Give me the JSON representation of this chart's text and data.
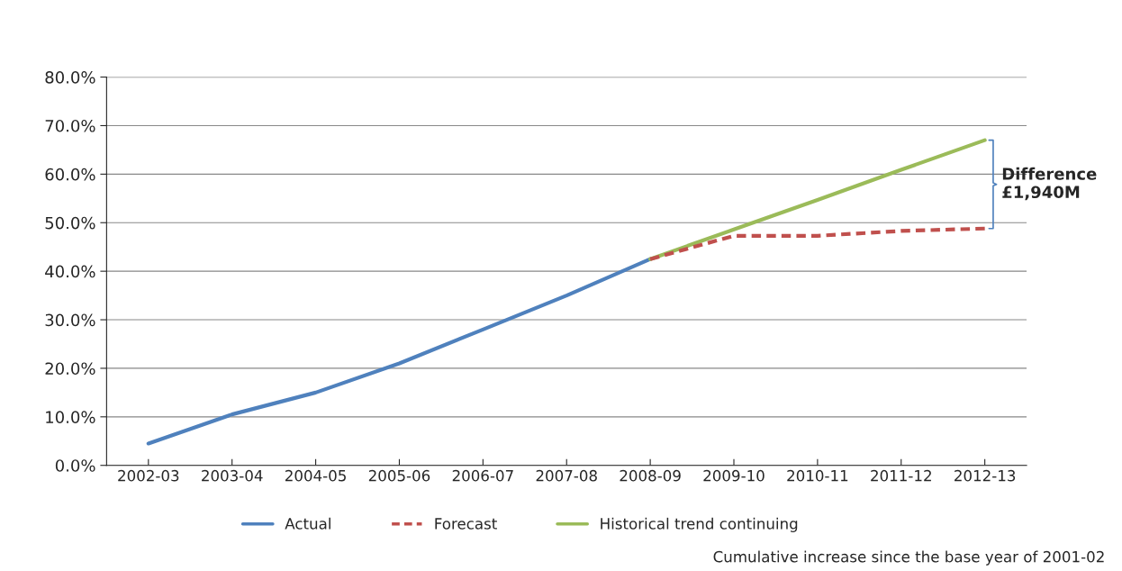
{
  "chart_data": {
    "type": "line",
    "categories": [
      "2002-03",
      "2003-04",
      "2004-05",
      "2005-06",
      "2006-07",
      "2007-08",
      "2008-09",
      "2009-10",
      "2010-11",
      "2011-12",
      "2012-13"
    ],
    "series": [
      {
        "name": "Actual",
        "color": "#4f81bd",
        "line_style": "solid",
        "values": [
          4.5,
          10.5,
          15.0,
          21.0,
          28.0,
          35.0,
          42.5,
          null,
          null,
          null,
          null
        ]
      },
      {
        "name": "Forecast",
        "color": "#c0504d",
        "line_style": "dashed",
        "values": [
          null,
          null,
          null,
          null,
          null,
          null,
          42.5,
          47.3,
          47.3,
          48.3,
          48.8
        ]
      },
      {
        "name": "Historical trend continuing",
        "color": "#9bbb59",
        "line_style": "solid",
        "values": [
          null,
          null,
          null,
          null,
          null,
          null,
          42.5,
          48.6,
          54.7,
          60.9,
          67.0
        ]
      }
    ],
    "ylim": [
      0,
      80
    ],
    "yticks": [
      {
        "value": 0,
        "label": "0.0%"
      },
      {
        "value": 10,
        "label": "10.0%"
      },
      {
        "value": 20,
        "label": "20.0%"
      },
      {
        "value": 30,
        "label": "30.0%"
      },
      {
        "value": 40,
        "label": "40.0%"
      },
      {
        "value": 50,
        "label": "50.0%"
      },
      {
        "value": 60,
        "label": "60.0%"
      },
      {
        "value": 70,
        "label": "70.0%"
      },
      {
        "value": 80,
        "label": "80.0%"
      }
    ],
    "grid": "y",
    "legend": "bottom",
    "marker": "none",
    "annotations": [
      "Difference\n£1,940M",
      "Cumulative increase since the base year of 2001-02"
    ]
  }
}
